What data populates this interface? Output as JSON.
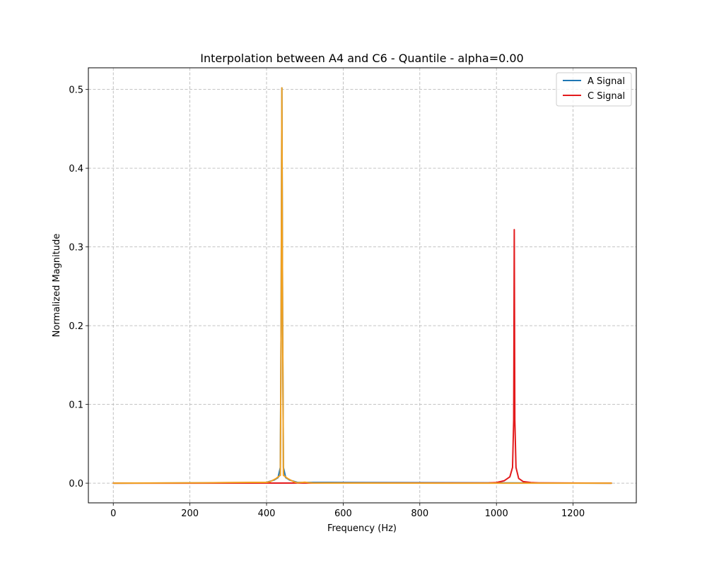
{
  "chart_data": {
    "type": "line",
    "title": "Interpolation between A4 and C6 - Quantile - alpha=0.00",
    "xlabel": "Frequency (Hz)",
    "ylabel": "Normalized Magnitude",
    "xlim": [
      -65,
      1365
    ],
    "ylim": [
      -0.025,
      0.5275
    ],
    "xticks": [
      0,
      200,
      400,
      600,
      800,
      1000,
      1200
    ],
    "xtick_labels": [
      "0",
      "200",
      "400",
      "600",
      "800",
      "1000",
      "1200"
    ],
    "yticks": [
      0.0,
      0.1,
      0.2,
      0.3,
      0.4,
      0.5
    ],
    "ytick_labels": [
      "0.0",
      "0.1",
      "0.2",
      "0.3",
      "0.4",
      "0.5"
    ],
    "grid": true,
    "legend": {
      "position": "top-right",
      "entries": [
        {
          "label": "A Signal",
          "color": "#1f77b4"
        },
        {
          "label": "C Signal",
          "color": "#e31a1c"
        }
      ]
    },
    "series": [
      {
        "name": "A Signal",
        "color": "#1f77b4",
        "x": [
          0,
          380,
          400,
          420,
          430,
          436,
          438,
          440,
          442,
          444,
          450,
          460,
          480,
          1300
        ],
        "y": [
          0.0,
          0.0005,
          0.001,
          0.004,
          0.007,
          0.02,
          0.2,
          0.502,
          0.2,
          0.02,
          0.007,
          0.004,
          0.001,
          0.0
        ]
      },
      {
        "name": "C Signal",
        "color": "#e31a1c",
        "x": [
          0,
          980,
          1000,
          1020,
          1035,
          1042,
          1045,
          1046.5,
          1048,
          1051,
          1058,
          1070,
          1090,
          1110,
          1300
        ],
        "y": [
          0.0,
          0.0003,
          0.0008,
          0.003,
          0.008,
          0.02,
          0.08,
          0.322,
          0.08,
          0.02,
          0.006,
          0.002,
          0.0008,
          0.0003,
          0.0
        ]
      },
      {
        "color": "#f0a020",
        "x": [
          0,
          240,
          300,
          360,
          400,
          410,
          425,
          436,
          438,
          440,
          442,
          444,
          455,
          470,
          480,
          500,
          510,
          520,
          560,
          1300
        ],
        "y": [
          0.0,
          0.0004,
          0.0008,
          0.001,
          0.001,
          0.002,
          0.006,
          0.01,
          0.2,
          0.502,
          0.2,
          0.01,
          0.006,
          0.002,
          0.0005,
          0.0012,
          0.0006,
          0.0002,
          0.0001,
          0.0
        ]
      }
    ]
  }
}
